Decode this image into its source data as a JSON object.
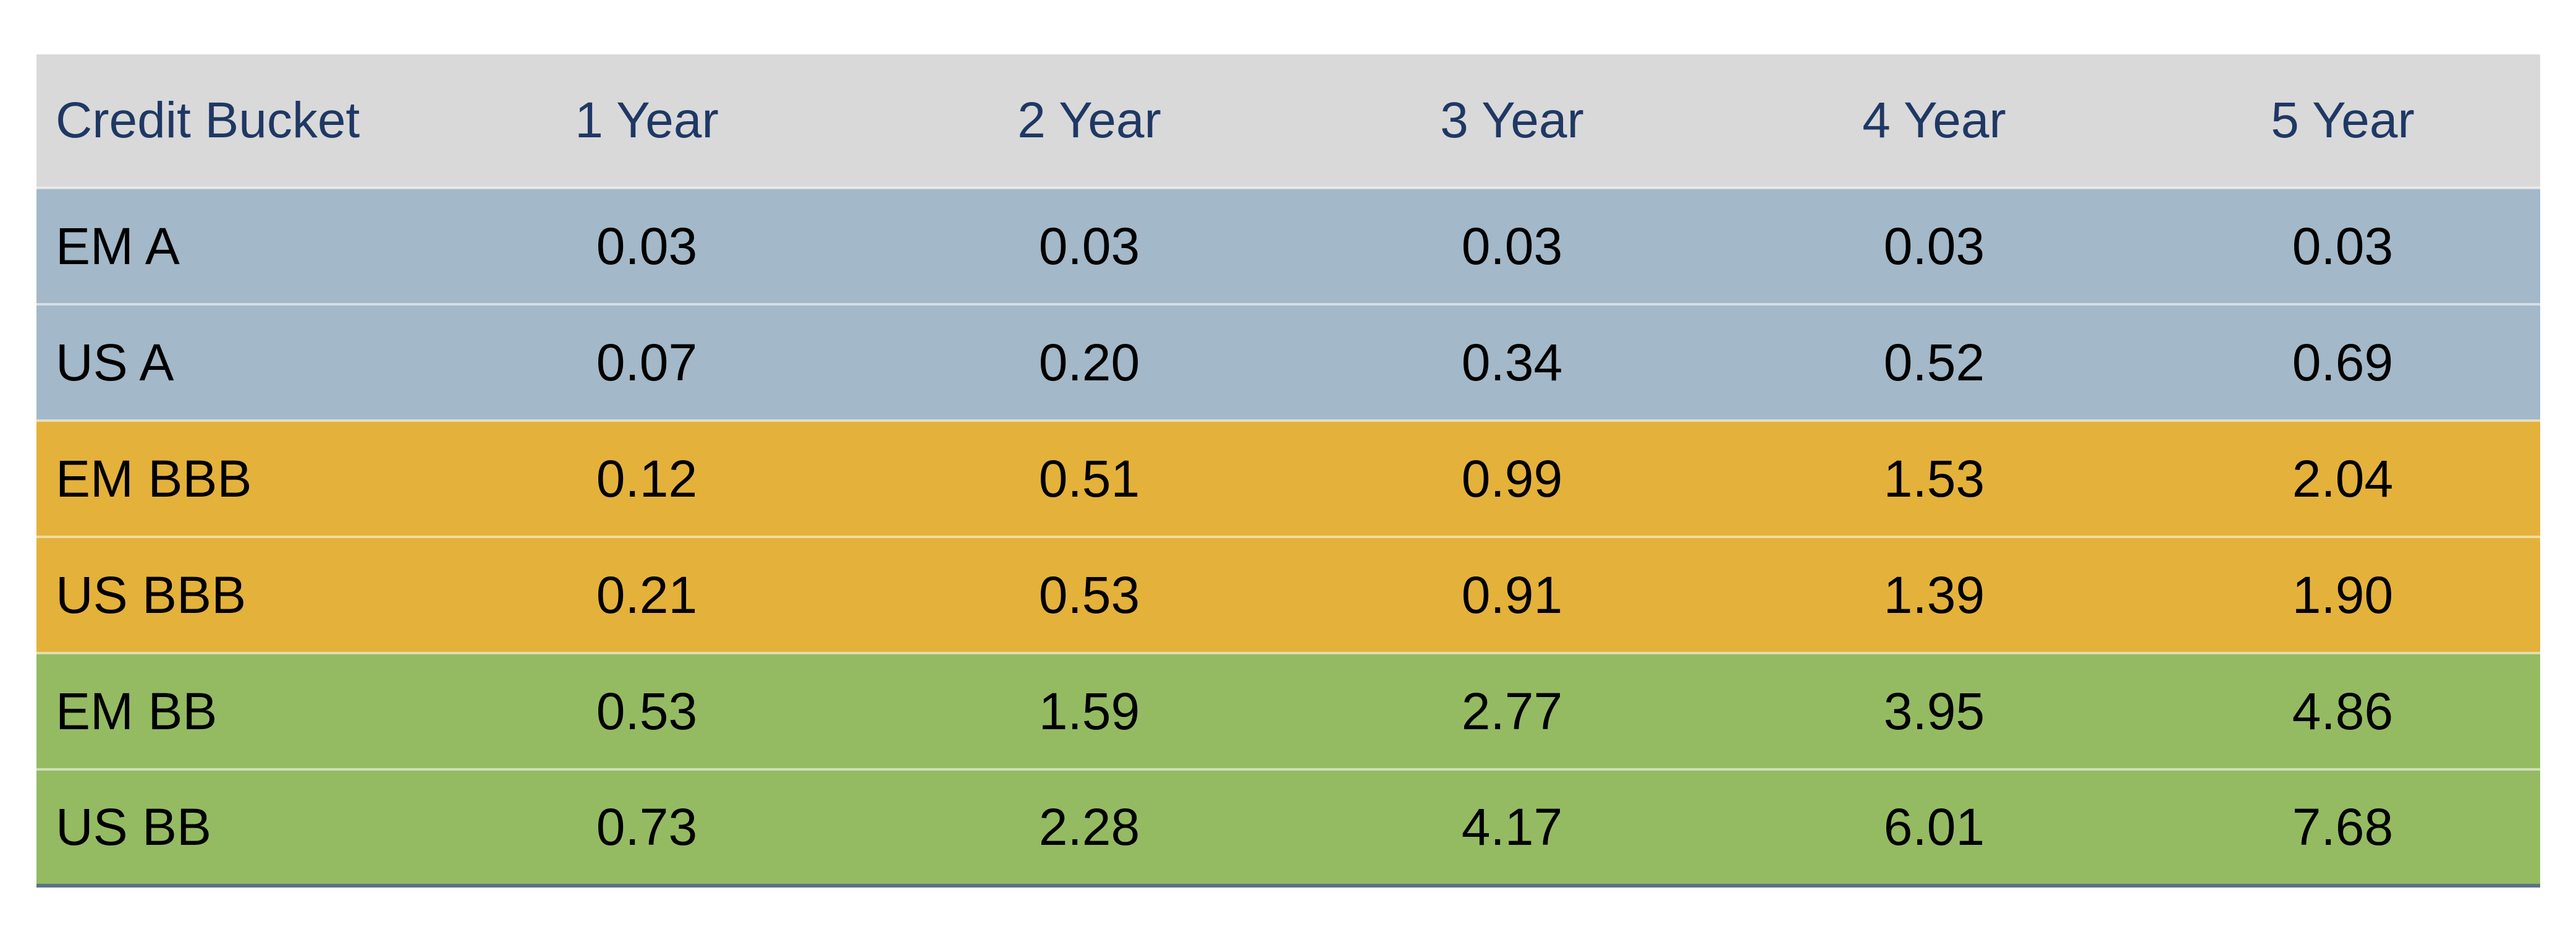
{
  "chart_data": {
    "type": "table",
    "columns": [
      "Credit Bucket",
      "1 Year",
      "2 Year",
      "3 Year",
      "4 Year",
      "5 Year"
    ],
    "rows": [
      {
        "label": "EM A",
        "values": [
          "0.03",
          "0.03",
          "0.03",
          "0.03",
          "0.03"
        ],
        "color": "#a3b8c8"
      },
      {
        "label": "US A",
        "values": [
          "0.07",
          "0.20",
          "0.34",
          "0.52",
          "0.69"
        ],
        "color": "#a3b8c8"
      },
      {
        "label": "EM BBB",
        "values": [
          "0.12",
          "0.51",
          "0.99",
          "1.53",
          "2.04"
        ],
        "color": "#e4b23a"
      },
      {
        "label": "US BBB",
        "values": [
          "0.21",
          "0.53",
          "0.91",
          "1.39",
          "1.90"
        ],
        "color": "#e4b23a"
      },
      {
        "label": "EM BB",
        "values": [
          "0.53",
          "1.59",
          "2.77",
          "3.95",
          "4.86"
        ],
        "color": "#94bb62"
      },
      {
        "label": "US BB",
        "values": [
          "0.73",
          "2.28",
          "4.17",
          "6.01",
          "7.68"
        ],
        "color": "#94bb62"
      }
    ],
    "header_color": "#d9d9d9",
    "header_text_color": "#1f3864"
  }
}
